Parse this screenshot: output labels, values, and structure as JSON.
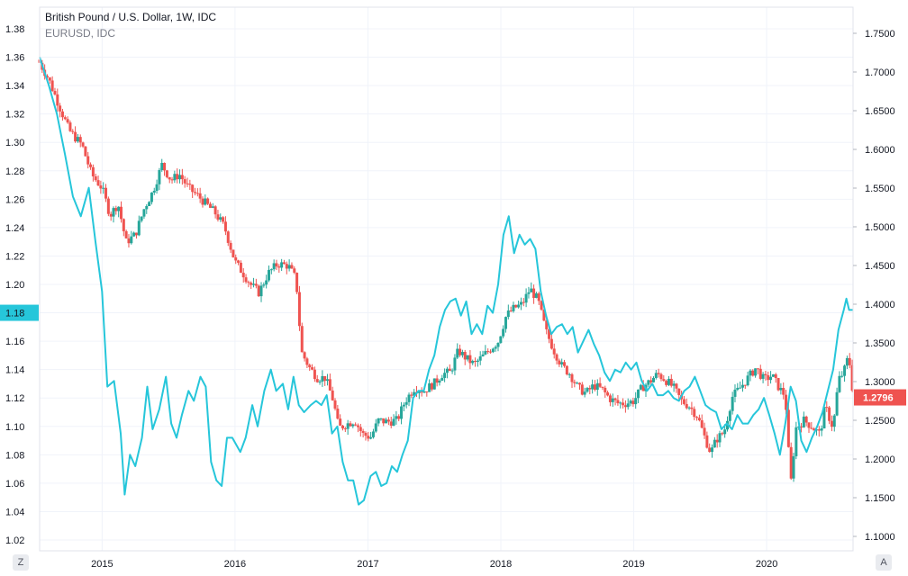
{
  "legend": {
    "main": "British Pound / U.S. Dollar, 1W, IDC",
    "compare": "EURUSD, IDC"
  },
  "buttons": {
    "left": "Z",
    "right": "A"
  },
  "colors": {
    "up": "#26a69a",
    "down": "#ef5350",
    "compare": "#26c6da",
    "grid": "#f0f3fa",
    "axis_text": "#131722"
  },
  "chart_data": {
    "type": "candlestick",
    "title": "British Pound / U.S. Dollar, 1W, IDC",
    "interval": "1W",
    "x_ticks": [
      "2015",
      "2016",
      "2017",
      "2018",
      "2019",
      "2020"
    ],
    "x_range": [
      2014.53,
      2020.65
    ],
    "left_axis": {
      "ticks": [
        "1.38",
        "1.36",
        "1.34",
        "1.32",
        "1.30",
        "1.28",
        "1.26",
        "1.24",
        "1.22",
        "1.20",
        "1.18",
        "1.16",
        "1.14",
        "1.12",
        "1.10",
        "1.08",
        "1.06",
        "1.04",
        "1.02"
      ],
      "range": [
        1.02,
        1.38
      ],
      "series": "EURUSD, IDC",
      "last_value_label": "1.18"
    },
    "right_axis": {
      "ticks": [
        "1.7500",
        "1.7000",
        "1.6500",
        "1.6000",
        "1.5500",
        "1.5000",
        "1.4500",
        "1.4000",
        "1.3500",
        "1.3000",
        "1.2500",
        "1.2000",
        "1.1500",
        "1.1000"
      ],
      "range": [
        1.088,
        1.775
      ],
      "series": "British Pound / U.S. Dollar, 1W, IDC",
      "last_value_label": "1.2796"
    },
    "grid": true,
    "series": [
      {
        "name": "EURUSD, IDC",
        "type": "line",
        "axis": "left",
        "points": [
          [
            2014.53,
            1.36
          ],
          [
            2014.6,
            1.34
          ],
          [
            2014.66,
            1.32
          ],
          [
            2014.72,
            1.292
          ],
          [
            2014.78,
            1.262
          ],
          [
            2014.84,
            1.248
          ],
          [
            2014.9,
            1.268
          ],
          [
            2014.95,
            1.23
          ],
          [
            2015.0,
            1.195
          ],
          [
            2015.04,
            1.128
          ],
          [
            2015.09,
            1.132
          ],
          [
            2015.14,
            1.095
          ],
          [
            2015.17,
            1.052
          ],
          [
            2015.21,
            1.08
          ],
          [
            2015.25,
            1.072
          ],
          [
            2015.3,
            1.092
          ],
          [
            2015.34,
            1.128
          ],
          [
            2015.38,
            1.098
          ],
          [
            2015.43,
            1.112
          ],
          [
            2015.48,
            1.135
          ],
          [
            2015.52,
            1.102
          ],
          [
            2015.56,
            1.092
          ],
          [
            2015.6,
            1.108
          ],
          [
            2015.65,
            1.125
          ],
          [
            2015.69,
            1.118
          ],
          [
            2015.74,
            1.135
          ],
          [
            2015.78,
            1.128
          ],
          [
            2015.82,
            1.075
          ],
          [
            2015.86,
            1.062
          ],
          [
            2015.9,
            1.058
          ],
          [
            2015.94,
            1.092
          ],
          [
            2015.98,
            1.092
          ],
          [
            2016.04,
            1.082
          ],
          [
            2016.08,
            1.092
          ],
          [
            2016.13,
            1.115
          ],
          [
            2016.17,
            1.1
          ],
          [
            2016.22,
            1.125
          ],
          [
            2016.27,
            1.14
          ],
          [
            2016.31,
            1.125
          ],
          [
            2016.36,
            1.13
          ],
          [
            2016.4,
            1.112
          ],
          [
            2016.44,
            1.135
          ],
          [
            2016.48,
            1.115
          ],
          [
            2016.52,
            1.11
          ],
          [
            2016.57,
            1.115
          ],
          [
            2016.61,
            1.118
          ],
          [
            2016.65,
            1.115
          ],
          [
            2016.69,
            1.122
          ],
          [
            2016.73,
            1.095
          ],
          [
            2016.77,
            1.1
          ],
          [
            2016.81,
            1.075
          ],
          [
            2016.85,
            1.062
          ],
          [
            2016.89,
            1.062
          ],
          [
            2016.93,
            1.045
          ],
          [
            2016.97,
            1.048
          ],
          [
            2017.02,
            1.065
          ],
          [
            2017.06,
            1.068
          ],
          [
            2017.1,
            1.058
          ],
          [
            2017.14,
            1.06
          ],
          [
            2017.18,
            1.072
          ],
          [
            2017.22,
            1.068
          ],
          [
            2017.26,
            1.08
          ],
          [
            2017.3,
            1.09
          ],
          [
            2017.34,
            1.12
          ],
          [
            2017.38,
            1.125
          ],
          [
            2017.42,
            1.125
          ],
          [
            2017.46,
            1.14
          ],
          [
            2017.5,
            1.15
          ],
          [
            2017.54,
            1.17
          ],
          [
            2017.58,
            1.182
          ],
          [
            2017.62,
            1.188
          ],
          [
            2017.66,
            1.19
          ],
          [
            2017.7,
            1.178
          ],
          [
            2017.74,
            1.188
          ],
          [
            2017.78,
            1.165
          ],
          [
            2017.82,
            1.172
          ],
          [
            2017.86,
            1.165
          ],
          [
            2017.9,
            1.185
          ],
          [
            2017.94,
            1.18
          ],
          [
            2017.98,
            1.2
          ],
          [
            2018.02,
            1.235
          ],
          [
            2018.06,
            1.248
          ],
          [
            2018.1,
            1.222
          ],
          [
            2018.14,
            1.235
          ],
          [
            2018.18,
            1.228
          ],
          [
            2018.22,
            1.232
          ],
          [
            2018.26,
            1.225
          ],
          [
            2018.3,
            1.195
          ],
          [
            2018.34,
            1.178
          ],
          [
            2018.38,
            1.165
          ],
          [
            2018.42,
            1.17
          ],
          [
            2018.46,
            1.172
          ],
          [
            2018.5,
            1.165
          ],
          [
            2018.54,
            1.17
          ],
          [
            2018.58,
            1.152
          ],
          [
            2018.62,
            1.16
          ],
          [
            2018.66,
            1.168
          ],
          [
            2018.7,
            1.158
          ],
          [
            2018.74,
            1.15
          ],
          [
            2018.78,
            1.138
          ],
          [
            2018.82,
            1.132
          ],
          [
            2018.86,
            1.14
          ],
          [
            2018.9,
            1.138
          ],
          [
            2018.94,
            1.145
          ],
          [
            2018.98,
            1.14
          ],
          [
            2019.02,
            1.145
          ],
          [
            2019.06,
            1.132
          ],
          [
            2019.1,
            1.125
          ],
          [
            2019.14,
            1.13
          ],
          [
            2019.18,
            1.122
          ],
          [
            2019.22,
            1.122
          ],
          [
            2019.26,
            1.125
          ],
          [
            2019.3,
            1.12
          ],
          [
            2019.34,
            1.118
          ],
          [
            2019.38,
            1.125
          ],
          [
            2019.42,
            1.128
          ],
          [
            2019.46,
            1.135
          ],
          [
            2019.5,
            1.125
          ],
          [
            2019.54,
            1.115
          ],
          [
            2019.58,
            1.112
          ],
          [
            2019.62,
            1.11
          ],
          [
            2019.66,
            1.098
          ],
          [
            2019.7,
            1.102
          ],
          [
            2019.74,
            1.098
          ],
          [
            2019.78,
            1.108
          ],
          [
            2019.82,
            1.102
          ],
          [
            2019.86,
            1.102
          ],
          [
            2019.9,
            1.108
          ],
          [
            2019.94,
            1.112
          ],
          [
            2019.98,
            1.12
          ],
          [
            2020.02,
            1.108
          ],
          [
            2020.06,
            1.095
          ],
          [
            2020.1,
            1.08
          ],
          [
            2020.14,
            1.102
          ],
          [
            2020.18,
            1.128
          ],
          [
            2020.22,
            1.118
          ],
          [
            2020.26,
            1.09
          ],
          [
            2020.3,
            1.082
          ],
          [
            2020.34,
            1.092
          ],
          [
            2020.38,
            1.1
          ],
          [
            2020.42,
            1.11
          ],
          [
            2020.46,
            1.125
          ],
          [
            2020.5,
            1.14
          ],
          [
            2020.54,
            1.168
          ],
          [
            2020.58,
            1.182
          ],
          [
            2020.6,
            1.19
          ],
          [
            2020.62,
            1.182
          ],
          [
            2020.65,
            1.182
          ]
        ]
      },
      {
        "name": "British Pound / U.S. Dollar, 1W, IDC",
        "type": "candlestick",
        "axis": "right",
        "close_points": [
          [
            2014.53,
            1.712
          ],
          [
            2014.6,
            1.69
          ],
          [
            2014.68,
            1.655
          ],
          [
            2014.75,
            1.625
          ],
          [
            2014.85,
            1.605
          ],
          [
            2014.92,
            1.568
          ],
          [
            2015.0,
            1.55
          ],
          [
            2015.06,
            1.515
          ],
          [
            2015.12,
            1.53
          ],
          [
            2015.18,
            1.48
          ],
          [
            2015.25,
            1.49
          ],
          [
            2015.32,
            1.525
          ],
          [
            2015.38,
            1.545
          ],
          [
            2015.45,
            1.58
          ],
          [
            2015.52,
            1.56
          ],
          [
            2015.58,
            1.568
          ],
          [
            2015.65,
            1.55
          ],
          [
            2015.72,
            1.54
          ],
          [
            2015.78,
            1.53
          ],
          [
            2015.85,
            1.518
          ],
          [
            2015.92,
            1.5
          ],
          [
            2016.0,
            1.455
          ],
          [
            2016.06,
            1.44
          ],
          [
            2016.12,
            1.425
          ],
          [
            2016.18,
            1.415
          ],
          [
            2016.25,
            1.44
          ],
          [
            2016.32,
            1.452
          ],
          [
            2016.4,
            1.45
          ],
          [
            2016.46,
            1.432
          ],
          [
            2016.5,
            1.338
          ],
          [
            2016.56,
            1.318
          ],
          [
            2016.62,
            1.305
          ],
          [
            2016.68,
            1.305
          ],
          [
            2016.74,
            1.275
          ],
          [
            2016.78,
            1.24
          ],
          [
            2016.84,
            1.245
          ],
          [
            2016.9,
            1.25
          ],
          [
            2016.96,
            1.232
          ],
          [
            2017.02,
            1.228
          ],
          [
            2017.08,
            1.25
          ],
          [
            2017.14,
            1.248
          ],
          [
            2017.22,
            1.25
          ],
          [
            2017.28,
            1.275
          ],
          [
            2017.35,
            1.292
          ],
          [
            2017.42,
            1.288
          ],
          [
            2017.5,
            1.298
          ],
          [
            2017.56,
            1.31
          ],
          [
            2017.62,
            1.312
          ],
          [
            2017.68,
            1.34
          ],
          [
            2017.74,
            1.33
          ],
          [
            2017.8,
            1.322
          ],
          [
            2017.86,
            1.332
          ],
          [
            2017.92,
            1.342
          ],
          [
            2017.98,
            1.352
          ],
          [
            2018.04,
            1.385
          ],
          [
            2018.1,
            1.395
          ],
          [
            2018.16,
            1.4
          ],
          [
            2018.22,
            1.42
          ],
          [
            2018.28,
            1.405
          ],
          [
            2018.34,
            1.365
          ],
          [
            2018.4,
            1.34
          ],
          [
            2018.46,
            1.32
          ],
          [
            2018.52,
            1.31
          ],
          [
            2018.58,
            1.292
          ],
          [
            2018.64,
            1.285
          ],
          [
            2018.7,
            1.295
          ],
          [
            2018.76,
            1.29
          ],
          [
            2018.82,
            1.278
          ],
          [
            2018.88,
            1.272
          ],
          [
            2018.94,
            1.272
          ],
          [
            2019.0,
            1.275
          ],
          [
            2019.06,
            1.292
          ],
          [
            2019.12,
            1.3
          ],
          [
            2019.18,
            1.31
          ],
          [
            2019.24,
            1.302
          ],
          [
            2019.3,
            1.292
          ],
          [
            2019.36,
            1.275
          ],
          [
            2019.42,
            1.268
          ],
          [
            2019.48,
            1.255
          ],
          [
            2019.54,
            1.225
          ],
          [
            2019.58,
            1.208
          ],
          [
            2019.62,
            1.225
          ],
          [
            2019.68,
            1.235
          ],
          [
            2019.74,
            1.28
          ],
          [
            2019.8,
            1.292
          ],
          [
            2019.86,
            1.305
          ],
          [
            2019.92,
            1.318
          ],
          [
            2019.98,
            1.302
          ],
          [
            2020.04,
            1.308
          ],
          [
            2020.1,
            1.29
          ],
          [
            2020.14,
            1.282
          ],
          [
            2020.18,
            1.165
          ],
          [
            2020.22,
            1.24
          ],
          [
            2020.28,
            1.25
          ],
          [
            2020.34,
            1.242
          ],
          [
            2020.4,
            1.232
          ],
          [
            2020.44,
            1.268
          ],
          [
            2020.5,
            1.24
          ],
          [
            2020.54,
            1.302
          ],
          [
            2020.58,
            1.312
          ],
          [
            2020.61,
            1.33
          ],
          [
            2020.63,
            1.32
          ],
          [
            2020.65,
            1.28
          ]
        ]
      }
    ]
  }
}
